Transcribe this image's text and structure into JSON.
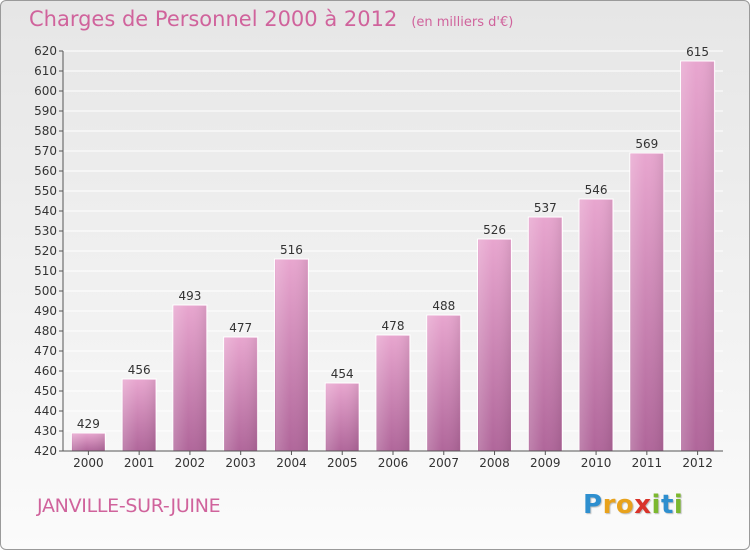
{
  "page": {
    "title": "Charges de Personnel 2000 à 2012",
    "subtitle": "(en milliers d'€)",
    "commune": "JANVILLE-SUR-JUINE",
    "logo": {
      "letters": [
        "P",
        "r",
        "o",
        "x",
        "i",
        "t",
        "i"
      ],
      "colors": [
        "#2e8fcf",
        "#e8a21c",
        "#e8a21c",
        "#d9332a",
        "#7cb82f",
        "#2e8fcf",
        "#7cb82f"
      ]
    }
  },
  "colors": {
    "title": "#d0639c",
    "bar_top": "#e8a6cf",
    "bar_bottom": "#b0669a",
    "axis": "#555555",
    "grid": "#ffffff"
  },
  "chart_data": {
    "type": "bar",
    "categories": [
      "2000",
      "2001",
      "2002",
      "2003",
      "2004",
      "2005",
      "2006",
      "2007",
      "2008",
      "2009",
      "2010",
      "2011",
      "2012"
    ],
    "values": [
      429,
      456,
      493,
      477,
      516,
      454,
      478,
      488,
      526,
      537,
      546,
      569,
      615
    ],
    "data_labels": [
      "429",
      "456",
      "493",
      "477",
      "516",
      "454",
      "478",
      "488",
      "526",
      "537",
      "546",
      "569",
      "615"
    ],
    "ylim": [
      420,
      620
    ],
    "yticks": [
      420,
      430,
      440,
      450,
      460,
      470,
      480,
      490,
      500,
      510,
      520,
      530,
      540,
      550,
      560,
      570,
      580,
      590,
      600,
      610,
      620
    ],
    "grid": true
  }
}
